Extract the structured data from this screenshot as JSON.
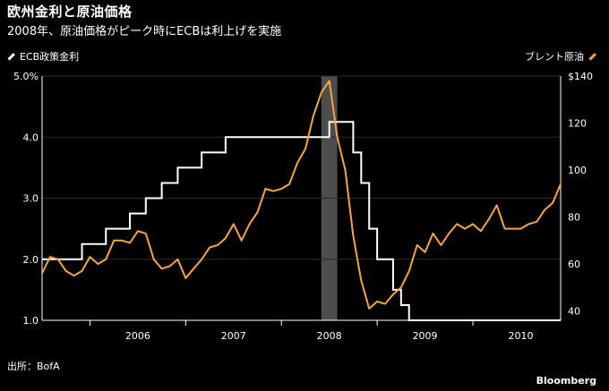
{
  "header": {
    "title": "欧州金利と原油価格",
    "subtitle": "2008年、原油価格がピーク時にECBは利上げを実施"
  },
  "legend": {
    "left_label": "ECB政策金利",
    "right_label": "ブレント原油"
  },
  "footer": {
    "source": "出所：BofA",
    "brand": "Bloomberg"
  },
  "colors": {
    "rate": "#ffffff",
    "oil": "#f7a540",
    "recession": "#4d4d4d",
    "background": "#000000"
  },
  "chart_data": {
    "type": "line",
    "title": "欧州金利と原油価格",
    "subtitle": "2008年、原油価格がピーク時にECBは利上げを実施",
    "x_range": [
      "2005-07",
      "2010-12"
    ],
    "x_tick_labels": [
      "2006",
      "2007",
      "2008",
      "2009",
      "2010"
    ],
    "left_axis": {
      "ylim": [
        1.0,
        5.0
      ],
      "tick_labels": [
        "1.0",
        "2.0",
        "3.0",
        "4.0",
        "5.0%"
      ],
      "ticks": [
        1,
        2,
        3,
        4,
        5
      ]
    },
    "right_axis": {
      "ylim": [
        36,
        140
      ],
      "tick_labels": [
        "40",
        "60",
        "80",
        "100",
        "120",
        "$140"
      ],
      "ticks": [
        40,
        60,
        80,
        100,
        120,
        140
      ]
    },
    "shaded_period": [
      "2008-06",
      "2008-07"
    ],
    "series": [
      {
        "name": "ECB政策金利",
        "axis": "left",
        "style": "step",
        "points": [
          [
            "2005-07",
            2.0
          ],
          [
            "2005-12",
            2.25
          ],
          [
            "2006-03",
            2.5
          ],
          [
            "2006-06",
            2.75
          ],
          [
            "2006-08",
            3.0
          ],
          [
            "2006-10",
            3.25
          ],
          [
            "2006-12",
            3.5
          ],
          [
            "2007-03",
            3.75
          ],
          [
            "2007-06",
            4.0
          ],
          [
            "2008-07",
            4.25
          ],
          [
            "2008-10",
            3.75
          ],
          [
            "2008-11",
            3.25
          ],
          [
            "2008-12",
            2.5
          ],
          [
            "2009-01",
            2.0
          ],
          [
            "2009-03",
            1.5
          ],
          [
            "2009-04",
            1.25
          ],
          [
            "2009-05",
            1.0
          ],
          [
            "2010-12",
            1.0
          ]
        ]
      },
      {
        "name": "ブレント原油",
        "axis": "right",
        "style": "line",
        "points": [
          [
            "2005-07",
            56
          ],
          [
            "2005-08",
            63
          ],
          [
            "2005-09",
            62
          ],
          [
            "2005-10",
            57
          ],
          [
            "2005-11",
            55
          ],
          [
            "2005-12",
            57
          ],
          [
            "2006-01",
            63
          ],
          [
            "2006-02",
            60
          ],
          [
            "2006-03",
            62
          ],
          [
            "2006-04",
            70
          ],
          [
            "2006-05",
            70
          ],
          [
            "2006-06",
            69
          ],
          [
            "2006-07",
            74
          ],
          [
            "2006-08",
            73
          ],
          [
            "2006-09",
            62
          ],
          [
            "2006-10",
            58
          ],
          [
            "2006-11",
            59
          ],
          [
            "2006-12",
            62
          ],
          [
            "2007-01",
            54
          ],
          [
            "2007-02",
            58
          ],
          [
            "2007-03",
            62
          ],
          [
            "2007-04",
            67
          ],
          [
            "2007-05",
            68
          ],
          [
            "2007-06",
            71
          ],
          [
            "2007-07",
            77
          ],
          [
            "2007-08",
            70
          ],
          [
            "2007-09",
            77
          ],
          [
            "2007-10",
            82
          ],
          [
            "2007-11",
            92
          ],
          [
            "2007-12",
            91
          ],
          [
            "2008-01",
            92
          ],
          [
            "2008-02",
            94
          ],
          [
            "2008-03",
            103
          ],
          [
            "2008-04",
            109
          ],
          [
            "2008-05",
            123
          ],
          [
            "2008-06",
            133
          ],
          [
            "2008-07",
            138
          ],
          [
            "2008-08",
            114
          ],
          [
            "2008-09",
            100
          ],
          [
            "2008-10",
            72
          ],
          [
            "2008-11",
            53
          ],
          [
            "2008-12",
            41
          ],
          [
            "2009-01",
            44
          ],
          [
            "2009-02",
            43
          ],
          [
            "2009-03",
            47
          ],
          [
            "2009-04",
            50
          ],
          [
            "2009-05",
            57
          ],
          [
            "2009-06",
            68
          ],
          [
            "2009-07",
            65
          ],
          [
            "2009-08",
            73
          ],
          [
            "2009-09",
            68
          ],
          [
            "2009-10",
            73
          ],
          [
            "2009-11",
            77
          ],
          [
            "2009-12",
            75
          ],
          [
            "2010-01",
            77
          ],
          [
            "2010-02",
            74
          ],
          [
            "2010-03",
            79
          ],
          [
            "2010-04",
            85
          ],
          [
            "2010-05",
            75
          ],
          [
            "2010-06",
            75
          ],
          [
            "2010-07",
            75
          ],
          [
            "2010-08",
            77
          ],
          [
            "2010-09",
            78
          ],
          [
            "2010-10",
            83
          ],
          [
            "2010-11",
            86
          ],
          [
            "2010-12",
            94
          ]
        ]
      }
    ]
  }
}
